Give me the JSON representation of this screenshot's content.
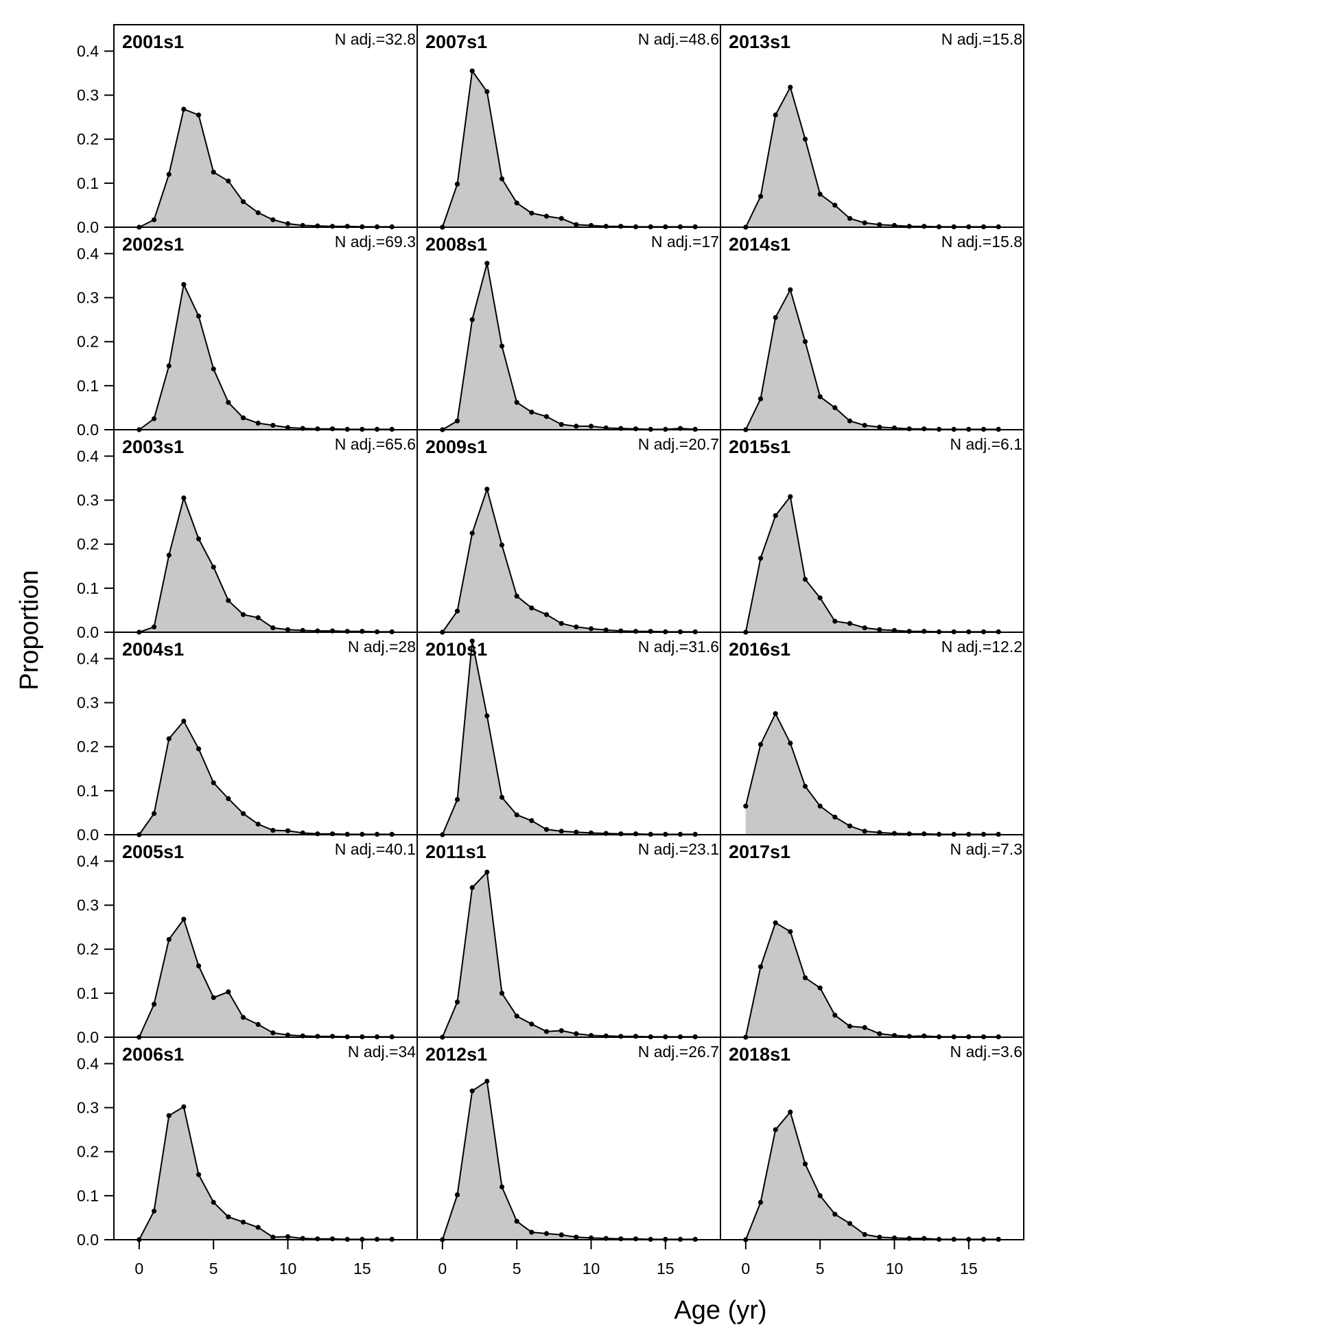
{
  "chart_data": {
    "type": "area",
    "xlabel": "Age (yr)",
    "ylabel": "Proportion",
    "xlim": [
      -1.7,
      18.7
    ],
    "ylim": [
      0,
      0.46
    ],
    "xticks": [
      0,
      5,
      10,
      15
    ],
    "yticks": [
      0.0,
      0.1,
      0.2,
      0.3,
      0.4
    ],
    "grid": false,
    "fill_color": "#c8c8c8",
    "line_color": "#000000",
    "x": [
      0,
      1,
      2,
      3,
      4,
      5,
      6,
      7,
      8,
      9,
      10,
      11,
      12,
      13,
      14,
      15,
      16,
      17
    ],
    "panels": [
      {
        "label": "2001s1",
        "n_adj": "N adj.=32.8",
        "values": [
          0.0,
          0.017,
          0.12,
          0.268,
          0.255,
          0.125,
          0.105,
          0.058,
          0.033,
          0.017,
          0.008,
          0.004,
          0.003,
          0.002,
          0.002,
          0.001,
          0.001,
          0.001
        ]
      },
      {
        "label": "2002s1",
        "n_adj": "N adj.=69.3",
        "values": [
          0.0,
          0.025,
          0.145,
          0.33,
          0.258,
          0.138,
          0.062,
          0.027,
          0.015,
          0.01,
          0.005,
          0.003,
          0.002,
          0.002,
          0.001,
          0.001,
          0.001,
          0.001
        ]
      },
      {
        "label": "2003s1",
        "n_adj": "N adj.=65.6",
        "values": [
          0.0,
          0.012,
          0.175,
          0.305,
          0.212,
          0.148,
          0.072,
          0.04,
          0.033,
          0.01,
          0.006,
          0.004,
          0.003,
          0.003,
          0.002,
          0.002,
          0.001,
          0.001
        ]
      },
      {
        "label": "2004s1",
        "n_adj": "N adj.=28",
        "values": [
          0.0,
          0.048,
          0.218,
          0.258,
          0.195,
          0.118,
          0.082,
          0.048,
          0.024,
          0.01,
          0.009,
          0.004,
          0.002,
          0.002,
          0.001,
          0.001,
          0.001,
          0.001
        ]
      },
      {
        "label": "2005s1",
        "n_adj": "N adj.=40.1",
        "values": [
          0.0,
          0.075,
          0.222,
          0.268,
          0.162,
          0.09,
          0.103,
          0.045,
          0.029,
          0.01,
          0.005,
          0.003,
          0.002,
          0.002,
          0.001,
          0.001,
          0.001,
          0.001
        ]
      },
      {
        "label": "2006s1",
        "n_adj": "N adj.=34",
        "values": [
          0.0,
          0.065,
          0.282,
          0.302,
          0.148,
          0.085,
          0.052,
          0.04,
          0.028,
          0.006,
          0.007,
          0.003,
          0.002,
          0.002,
          0.001,
          0.001,
          0.001,
          0.001
        ]
      },
      {
        "label": "2007s1",
        "n_adj": "N adj.=48.6",
        "values": [
          0.0,
          0.098,
          0.355,
          0.308,
          0.11,
          0.055,
          0.032,
          0.025,
          0.02,
          0.006,
          0.004,
          0.002,
          0.002,
          0.001,
          0.001,
          0.001,
          0.001,
          0.001
        ]
      },
      {
        "label": "2008s1",
        "n_adj": "N adj.=17",
        "values": [
          0.0,
          0.02,
          0.25,
          0.378,
          0.19,
          0.062,
          0.04,
          0.03,
          0.012,
          0.008,
          0.008,
          0.004,
          0.003,
          0.002,
          0.001,
          0.001,
          0.003,
          0.001
        ]
      },
      {
        "label": "2009s1",
        "n_adj": "N adj.=20.7",
        "values": [
          0.0,
          0.048,
          0.225,
          0.325,
          0.198,
          0.082,
          0.055,
          0.04,
          0.02,
          0.012,
          0.008,
          0.005,
          0.003,
          0.002,
          0.002,
          0.001,
          0.001,
          0.001
        ]
      },
      {
        "label": "2010s1",
        "n_adj": "N adj.=31.6",
        "values": [
          0.0,
          0.08,
          0.44,
          0.27,
          0.085,
          0.045,
          0.032,
          0.012,
          0.008,
          0.006,
          0.004,
          0.003,
          0.002,
          0.002,
          0.001,
          0.001,
          0.001,
          0.001
        ]
      },
      {
        "label": "2011s1",
        "n_adj": "N adj.=23.1",
        "values": [
          0.0,
          0.08,
          0.34,
          0.375,
          0.1,
          0.048,
          0.03,
          0.013,
          0.015,
          0.008,
          0.004,
          0.003,
          0.002,
          0.002,
          0.001,
          0.001,
          0.001,
          0.001
        ]
      },
      {
        "label": "2012s1",
        "n_adj": "N adj.=26.7",
        "values": [
          0.0,
          0.102,
          0.338,
          0.36,
          0.12,
          0.042,
          0.017,
          0.014,
          0.011,
          0.006,
          0.004,
          0.003,
          0.002,
          0.002,
          0.001,
          0.001,
          0.001,
          0.001
        ]
      },
      {
        "label": "2013s1",
        "n_adj": "N adj.=15.8",
        "values": [
          0.0,
          0.07,
          0.255,
          0.318,
          0.2,
          0.075,
          0.05,
          0.02,
          0.01,
          0.006,
          0.004,
          0.002,
          0.002,
          0.001,
          0.001,
          0.001,
          0.001,
          0.001
        ]
      },
      {
        "label": "2014s1",
        "n_adj": "N adj.=15.8",
        "values": [
          0.0,
          0.07,
          0.255,
          0.318,
          0.2,
          0.075,
          0.05,
          0.02,
          0.01,
          0.006,
          0.004,
          0.002,
          0.002,
          0.001,
          0.001,
          0.001,
          0.001,
          0.001
        ]
      },
      {
        "label": "2015s1",
        "n_adj": "N adj.=6.1",
        "values": [
          0.0,
          0.168,
          0.265,
          0.308,
          0.12,
          0.078,
          0.025,
          0.02,
          0.01,
          0.006,
          0.004,
          0.002,
          0.002,
          0.001,
          0.001,
          0.001,
          0.001,
          0.001
        ]
      },
      {
        "label": "2016s1",
        "n_adj": "N adj.=12.2",
        "values": [
          0.065,
          0.205,
          0.275,
          0.208,
          0.11,
          0.065,
          0.04,
          0.02,
          0.008,
          0.005,
          0.003,
          0.002,
          0.002,
          0.001,
          0.001,
          0.001,
          0.001,
          0.001
        ]
      },
      {
        "label": "2017s1",
        "n_adj": "N adj.=7.3",
        "values": [
          0.0,
          0.16,
          0.26,
          0.24,
          0.135,
          0.112,
          0.05,
          0.025,
          0.022,
          0.008,
          0.004,
          0.002,
          0.003,
          0.001,
          0.001,
          0.001,
          0.001,
          0.001
        ]
      },
      {
        "label": "2018s1",
        "n_adj": "N adj.=3.6",
        "values": [
          0.0,
          0.085,
          0.25,
          0.29,
          0.172,
          0.1,
          0.058,
          0.037,
          0.012,
          0.006,
          0.004,
          0.003,
          0.003,
          0.001,
          0.001,
          0.001,
          0.001,
          0.001
        ]
      }
    ]
  }
}
